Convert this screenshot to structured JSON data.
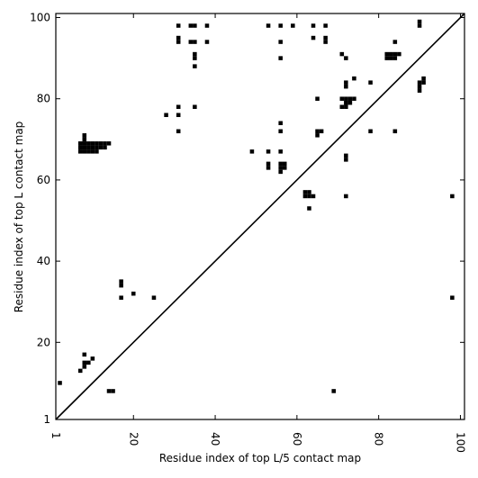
{
  "chart_data": {
    "type": "heatmap",
    "title": "",
    "xlabel": "Residue index of top L/5 contact map",
    "ylabel": "Residue index of top L contact map",
    "xlim": [
      1,
      101
    ],
    "ylim": [
      1,
      101
    ],
    "x_ticks": [
      1,
      20,
      40,
      60,
      80,
      100
    ],
    "y_ticks": [
      1,
      20,
      40,
      60,
      80,
      100
    ],
    "x_tick_labels": [
      "1",
      "20",
      "40",
      "60",
      "80",
      "100"
    ],
    "y_tick_labels": [
      "1",
      "20",
      "40",
      "60",
      "80",
      "100"
    ],
    "x_tick_rotation": "vertical",
    "grid": false,
    "legend": "none",
    "diagonal_line": true,
    "cell_color": "#000000",
    "background_color": "#ffffff",
    "cells": [
      [
        31,
        98
      ],
      [
        31,
        95
      ],
      [
        31,
        94
      ],
      [
        34,
        98
      ],
      [
        35,
        98
      ],
      [
        38,
        98
      ],
      [
        53,
        98
      ],
      [
        56,
        98
      ],
      [
        59,
        98
      ],
      [
        64,
        98
      ],
      [
        67,
        98
      ],
      [
        90,
        99
      ],
      [
        90,
        98
      ],
      [
        34,
        94
      ],
      [
        35,
        94
      ],
      [
        38,
        94
      ],
      [
        56,
        94
      ],
      [
        64,
        95
      ],
      [
        67,
        95
      ],
      [
        67,
        94
      ],
      [
        84,
        94
      ],
      [
        35,
        91
      ],
      [
        35,
        90
      ],
      [
        56,
        90
      ],
      [
        71,
        91
      ],
      [
        72,
        90
      ],
      [
        35,
        88
      ],
      [
        82,
        91
      ],
      [
        83,
        91
      ],
      [
        84,
        91
      ],
      [
        85,
        91
      ],
      [
        82,
        90
      ],
      [
        83,
        90
      ],
      [
        84,
        90
      ],
      [
        74,
        85
      ],
      [
        72,
        84
      ],
      [
        72,
        83
      ],
      [
        78,
        84
      ],
      [
        90,
        84
      ],
      [
        91,
        84
      ],
      [
        91,
        85
      ],
      [
        90,
        83
      ],
      [
        90,
        82
      ],
      [
        65,
        80
      ],
      [
        71,
        80
      ],
      [
        72,
        80
      ],
      [
        73,
        80
      ],
      [
        74,
        80
      ],
      [
        73,
        79
      ],
      [
        72,
        79
      ],
      [
        71,
        78
      ],
      [
        72,
        78
      ],
      [
        31,
        78
      ],
      [
        35,
        78
      ],
      [
        28,
        76
      ],
      [
        31,
        76
      ],
      [
        56,
        74
      ],
      [
        56,
        72
      ],
      [
        31,
        72
      ],
      [
        65,
        72
      ],
      [
        66,
        72
      ],
      [
        65,
        71
      ],
      [
        78,
        72
      ],
      [
        84,
        72
      ],
      [
        8,
        71
      ],
      [
        8,
        70
      ],
      [
        7,
        69
      ],
      [
        8,
        69
      ],
      [
        9,
        69
      ],
      [
        10,
        69
      ],
      [
        11,
        69
      ],
      [
        12,
        69
      ],
      [
        13,
        69
      ],
      [
        14,
        69
      ],
      [
        7,
        68
      ],
      [
        8,
        68
      ],
      [
        9,
        68
      ],
      [
        10,
        68
      ],
      [
        11,
        68
      ],
      [
        12,
        68
      ],
      [
        13,
        68
      ],
      [
        7,
        67
      ],
      [
        8,
        67
      ],
      [
        9,
        67
      ],
      [
        10,
        67
      ],
      [
        11,
        67
      ],
      [
        49,
        67
      ],
      [
        53,
        67
      ],
      [
        56,
        67
      ],
      [
        72,
        66
      ],
      [
        72,
        65
      ],
      [
        53,
        64
      ],
      [
        56,
        64
      ],
      [
        57,
        64
      ],
      [
        53,
        63
      ],
      [
        56,
        63
      ],
      [
        57,
        63
      ],
      [
        56,
        62
      ],
      [
        62,
        57
      ],
      [
        63,
        57
      ],
      [
        62,
        56
      ],
      [
        63,
        56
      ],
      [
        64,
        56
      ],
      [
        72,
        56
      ],
      [
        98,
        56
      ],
      [
        63,
        53
      ],
      [
        17,
        35
      ],
      [
        17,
        34
      ],
      [
        20,
        32
      ],
      [
        17,
        31
      ],
      [
        25,
        31
      ],
      [
        98,
        31
      ],
      [
        8,
        17
      ],
      [
        10,
        16
      ],
      [
        9,
        15
      ],
      [
        8,
        15
      ],
      [
        8,
        14
      ],
      [
        7,
        13
      ],
      [
        2,
        10
      ],
      [
        14,
        8
      ],
      [
        15,
        8
      ],
      [
        69,
        8
      ]
    ]
  }
}
